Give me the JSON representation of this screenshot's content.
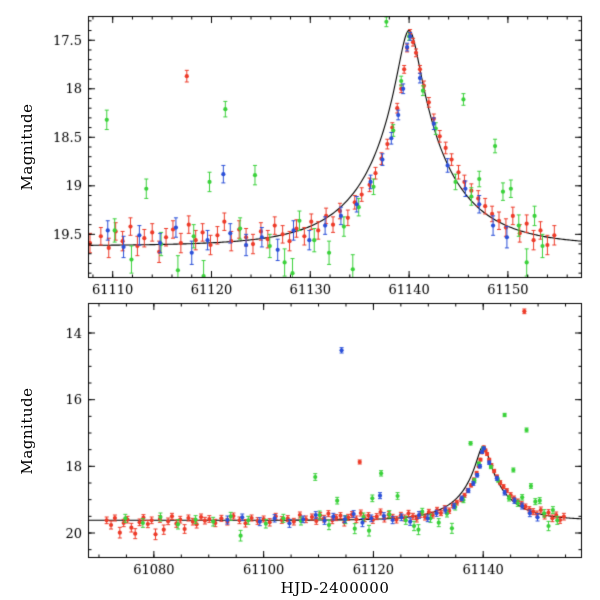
{
  "figure": {
    "ylabel": "Magnitude",
    "xlabel": "HJD-2400000",
    "background": "#ffffff",
    "axes_color": "#000000",
    "model_color": "#000000"
  },
  "chart_data": {
    "type": "scatter",
    "title": "",
    "xlabel": "HJD-2400000",
    "ylabel": "Magnitude",
    "legend": "none",
    "grid": false,
    "panels": [
      {
        "name": "top-zoom",
        "xlim": [
          61107.5,
          61157.5
        ],
        "ylim": [
          17.25,
          19.95
        ],
        "xticks": [
          61110,
          61120,
          61130,
          61140,
          61150
        ],
        "yticks": [
          17.5,
          18,
          18.5,
          19,
          19.5
        ],
        "ytick_labels": [
          "17.5",
          "18",
          "18.5",
          "19",
          "19.5"
        ],
        "x_minor": 2,
        "y_minor": 0.1,
        "show_xlabel": false
      },
      {
        "name": "bottom-full",
        "xlim": [
          61068,
          61158
        ],
        "ylim": [
          13.1,
          20.75
        ],
        "xticks": [
          61080,
          61100,
          61120,
          61140
        ],
        "yticks": [
          14,
          16,
          18,
          20
        ],
        "ytick_labels": [
          "14",
          "16",
          "18",
          "20"
        ],
        "x_minor": 5,
        "y_minor": 0.5,
        "show_xlabel": true
      }
    ],
    "model": {
      "type": "microlensing-point-lens",
      "t0": 61140.0,
      "tE": 8.0,
      "u0": 0.13,
      "baseline_mag": 19.62,
      "peak_mag": 17.4
    },
    "series": [
      {
        "name": "red",
        "color": "#ee3b29",
        "points": [
          [
            61071.4,
            19.62,
            0.1
          ],
          [
            61072.2,
            19.76,
            0.12
          ],
          [
            61072.9,
            19.55,
            0.09
          ],
          [
            61073.8,
            19.99,
            0.16
          ],
          [
            61074.5,
            19.7,
            0.11
          ],
          [
            61075.2,
            19.6,
            0.1
          ],
          [
            61075.9,
            19.84,
            0.13
          ],
          [
            61076.6,
            20.02,
            0.15
          ],
          [
            61077.4,
            19.68,
            0.1
          ],
          [
            61078.1,
            19.54,
            0.09
          ],
          [
            61078.9,
            19.73,
            0.11
          ],
          [
            61079.6,
            19.62,
            0.1
          ],
          [
            61080.3,
            20.04,
            0.16
          ],
          [
            61081.1,
            19.58,
            0.1
          ],
          [
            61081.8,
            19.9,
            0.14
          ],
          [
            61082.6,
            19.65,
            0.1
          ],
          [
            61083.3,
            19.5,
            0.09
          ],
          [
            61084.1,
            19.72,
            0.11
          ],
          [
            61084.8,
            19.6,
            0.1
          ],
          [
            61085.6,
            19.88,
            0.13
          ],
          [
            61086.3,
            19.55,
            0.09
          ],
          [
            61087.1,
            19.66,
            0.1
          ],
          [
            61087.8,
            19.74,
            0.11
          ],
          [
            61088.6,
            19.52,
            0.09
          ],
          [
            61089.3,
            19.63,
            0.1
          ],
          [
            61090.1,
            19.58,
            0.1
          ],
          [
            61091.2,
            19.7,
            0.11
          ],
          [
            61092.3,
            19.56,
            0.09
          ],
          [
            61093.4,
            19.66,
            0.1
          ],
          [
            61094.5,
            19.49,
            0.09
          ],
          [
            61095.6,
            19.62,
            0.1
          ],
          [
            61096.7,
            19.71,
            0.11
          ],
          [
            61097.8,
            19.55,
            0.09
          ],
          [
            61098.9,
            19.64,
            0.1
          ],
          [
            61100.0,
            19.58,
            0.09
          ],
          [
            61101.1,
            19.68,
            0.11
          ],
          [
            61102.2,
            19.5,
            0.09
          ],
          [
            61103.3,
            19.61,
            0.1
          ],
          [
            61104.4,
            19.57,
            0.09
          ],
          [
            61105.5,
            19.66,
            0.1
          ],
          [
            61106.6,
            19.46,
            0.09
          ],
          [
            61107.7,
            19.59,
            0.1
          ],
          [
            61108.8,
            19.52,
            0.09
          ],
          [
            61109.6,
            19.64,
            0.1
          ],
          [
            61110.3,
            19.47,
            0.09
          ],
          [
            61111.0,
            19.57,
            0.1
          ],
          [
            61111.8,
            19.42,
            0.09
          ],
          [
            61112.5,
            19.62,
            0.1
          ],
          [
            61113.2,
            19.54,
            0.09
          ],
          [
            61114.0,
            19.48,
            0.09
          ],
          [
            61114.7,
            19.68,
            0.11
          ],
          [
            61115.4,
            19.53,
            0.09
          ],
          [
            61116.1,
            19.45,
            0.09
          ],
          [
            61116.9,
            19.59,
            0.1
          ],
          [
            61117.5,
            17.87,
            0.06
          ],
          [
            61117.7,
            19.4,
            0.09
          ],
          [
            61118.4,
            19.56,
            0.1
          ],
          [
            61119.1,
            19.48,
            0.09
          ],
          [
            61119.9,
            19.61,
            0.1
          ],
          [
            61120.6,
            19.51,
            0.09
          ],
          [
            61121.3,
            19.37,
            0.09
          ],
          [
            61122.0,
            19.57,
            0.1
          ],
          [
            61122.8,
            19.45,
            0.09
          ],
          [
            61123.5,
            19.53,
            0.09
          ],
          [
            61124.2,
            19.6,
            0.1
          ],
          [
            61125.0,
            19.47,
            0.09
          ],
          [
            61125.7,
            19.55,
            0.09
          ],
          [
            61126.4,
            19.41,
            0.09
          ],
          [
            61127.2,
            19.5,
            0.09
          ],
          [
            61127.9,
            19.57,
            0.1
          ],
          [
            61128.6,
            19.44,
            0.09
          ],
          [
            61129.4,
            19.52,
            0.09
          ],
          [
            61130.1,
            19.37,
            0.08
          ],
          [
            61130.8,
            19.46,
            0.09
          ],
          [
            61131.6,
            19.31,
            0.08
          ],
          [
            61132.3,
            19.4,
            0.08
          ],
          [
            61133.0,
            19.26,
            0.08
          ],
          [
            61133.8,
            19.33,
            0.08
          ],
          [
            61134.5,
            19.17,
            0.07
          ],
          [
            61135.2,
            19.09,
            0.07
          ],
          [
            61136.0,
            18.99,
            0.07
          ],
          [
            61136.6,
            18.87,
            0.06
          ],
          [
            61137.2,
            18.72,
            0.06
          ],
          [
            61137.8,
            18.57,
            0.05
          ],
          [
            61138.3,
            18.4,
            0.05
          ],
          [
            61138.8,
            18.2,
            0.05
          ],
          [
            61139.2,
            18.0,
            0.04
          ],
          [
            61139.5,
            17.8,
            0.04
          ],
          [
            61139.8,
            17.58,
            0.04
          ],
          [
            61140.1,
            17.43,
            0.04
          ],
          [
            61140.4,
            17.52,
            0.04
          ],
          [
            61140.7,
            17.63,
            0.04
          ],
          [
            61141.1,
            17.8,
            0.04
          ],
          [
            61141.5,
            17.97,
            0.05
          ],
          [
            61142.0,
            18.14,
            0.05
          ],
          [
            61142.5,
            18.31,
            0.05
          ],
          [
            61143.1,
            18.49,
            0.06
          ],
          [
            61143.7,
            18.61,
            0.06
          ],
          [
            61144.3,
            18.73,
            0.06
          ],
          [
            61145.0,
            18.86,
            0.07
          ],
          [
            61145.6,
            18.96,
            0.07
          ],
          [
            61146.3,
            19.05,
            0.07
          ],
          [
            61147.0,
            19.13,
            0.08
          ],
          [
            61147.5,
            13.35,
            0.07
          ],
          [
            61147.7,
            19.21,
            0.08
          ],
          [
            61148.4,
            19.29,
            0.08
          ],
          [
            61149.1,
            19.36,
            0.09
          ],
          [
            61149.8,
            19.43,
            0.09
          ],
          [
            61150.5,
            19.31,
            0.09
          ],
          [
            61151.2,
            19.49,
            0.09
          ],
          [
            61151.9,
            19.39,
            0.09
          ],
          [
            61152.6,
            19.56,
            0.1
          ],
          [
            61153.3,
            19.46,
            0.09
          ],
          [
            61154.0,
            19.61,
            0.1
          ],
          [
            61154.7,
            19.51,
            0.1
          ]
        ]
      },
      {
        "name": "green",
        "color": "#3bd23b",
        "points": [
          [
            61074.8,
            19.56,
            0.12
          ],
          [
            61078.0,
            19.7,
            0.13
          ],
          [
            61081.2,
            19.52,
            0.12
          ],
          [
            61084.4,
            19.74,
            0.14
          ],
          [
            61087.6,
            19.6,
            0.12
          ],
          [
            61090.8,
            19.66,
            0.13
          ],
          [
            61094.0,
            19.5,
            0.12
          ],
          [
            61095.8,
            20.08,
            0.16
          ],
          [
            61097.2,
            19.62,
            0.12
          ],
          [
            61100.4,
            19.72,
            0.13
          ],
          [
            61103.6,
            19.56,
            0.12
          ],
          [
            61106.8,
            19.64,
            0.12
          ],
          [
            61109.4,
            18.32,
            0.1
          ],
          [
            61110.2,
            19.46,
            0.12
          ],
          [
            61111.9,
            19.76,
            0.14
          ],
          [
            61113.4,
            19.03,
            0.1
          ],
          [
            61114.9,
            19.6,
            0.12
          ],
          [
            61116.6,
            19.87,
            0.15
          ],
          [
            61118.2,
            19.52,
            0.12
          ],
          [
            61119.2,
            19.93,
            0.16
          ],
          [
            61119.8,
            18.96,
            0.1
          ],
          [
            61121.4,
            18.21,
            0.08
          ],
          [
            61122.9,
            19.44,
            0.11
          ],
          [
            61124.4,
            18.89,
            0.1
          ],
          [
            61125.9,
            19.62,
            0.12
          ],
          [
            61127.4,
            19.79,
            0.14
          ],
          [
            61128.2,
            19.9,
            0.15
          ],
          [
            61128.9,
            19.36,
            0.1
          ],
          [
            61130.4,
            19.56,
            0.12
          ],
          [
            61131.9,
            19.69,
            0.12
          ],
          [
            61133.4,
            19.42,
            0.1
          ],
          [
            61134.3,
            19.86,
            0.15
          ],
          [
            61134.9,
            19.22,
            0.09
          ],
          [
            61136.4,
            19.01,
            0.08
          ],
          [
            61137.7,
            17.31,
            0.05
          ],
          [
            61138.4,
            18.43,
            0.06
          ],
          [
            61139.2,
            17.92,
            0.05
          ],
          [
            61140.0,
            17.46,
            0.04
          ],
          [
            61141.4,
            18.02,
            0.05
          ],
          [
            61142.7,
            18.41,
            0.06
          ],
          [
            61143.9,
            16.46,
            0.05
          ],
          [
            61144.7,
            18.96,
            0.08
          ],
          [
            61145.5,
            18.11,
            0.06
          ],
          [
            61146.3,
            19.11,
            0.09
          ],
          [
            61147.1,
            18.93,
            0.08
          ],
          [
            61147.9,
            16.91,
            0.06
          ],
          [
            61148.7,
            18.59,
            0.07
          ],
          [
            61149.5,
            19.06,
            0.09
          ],
          [
            61150.3,
            19.03,
            0.09
          ],
          [
            61151.1,
            19.41,
            0.11
          ],
          [
            61151.9,
            19.79,
            0.14
          ],
          [
            61152.7,
            19.31,
            0.1
          ],
          [
            61153.5,
            19.62,
            0.12
          ]
        ]
      },
      {
        "name": "blue",
        "color": "#2b50d9",
        "points": [
          [
            61093.4,
            19.61,
            0.12
          ],
          [
            61096.1,
            19.53,
            0.1
          ],
          [
            61099.3,
            19.66,
            0.12
          ],
          [
            61102.0,
            19.56,
            0.11
          ],
          [
            61104.7,
            19.71,
            0.12
          ],
          [
            61107.2,
            19.59,
            0.1
          ],
          [
            61109.5,
            19.46,
            0.1
          ],
          [
            61111.1,
            19.63,
            0.11
          ],
          [
            61112.7,
            19.51,
            0.1
          ],
          [
            61114.2,
            14.52,
            0.08
          ],
          [
            61114.8,
            19.59,
            0.1
          ],
          [
            61116.4,
            19.43,
            0.1
          ],
          [
            61118.0,
            19.69,
            0.12
          ],
          [
            61119.6,
            19.56,
            0.1
          ],
          [
            61121.2,
            18.88,
            0.09
          ],
          [
            61121.9,
            19.49,
            0.1
          ],
          [
            61123.5,
            19.61,
            0.11
          ],
          [
            61125.1,
            19.53,
            0.1
          ],
          [
            61126.7,
            19.66,
            0.11
          ],
          [
            61128.3,
            19.46,
            0.1
          ],
          [
            61129.9,
            19.56,
            0.1
          ],
          [
            61131.5,
            19.41,
            0.09
          ],
          [
            61133.1,
            19.31,
            0.09
          ],
          [
            61134.7,
            19.19,
            0.08
          ],
          [
            61136.1,
            18.96,
            0.07
          ],
          [
            61137.3,
            18.73,
            0.06
          ],
          [
            61138.2,
            18.51,
            0.06
          ],
          [
            61138.9,
            18.27,
            0.05
          ],
          [
            61139.4,
            18.0,
            0.05
          ],
          [
            61139.8,
            17.57,
            0.04
          ],
          [
            61140.1,
            17.46,
            0.04
          ],
          [
            61141.1,
            17.89,
            0.05
          ],
          [
            61142.5,
            18.36,
            0.06
          ],
          [
            61143.9,
            18.79,
            0.07
          ],
          [
            61145.7,
            19.03,
            0.08
          ],
          [
            61147.1,
            19.19,
            0.09
          ],
          [
            61148.5,
            19.41,
            0.1
          ],
          [
            61149.9,
            19.53,
            0.11
          ]
        ]
      }
    ]
  }
}
